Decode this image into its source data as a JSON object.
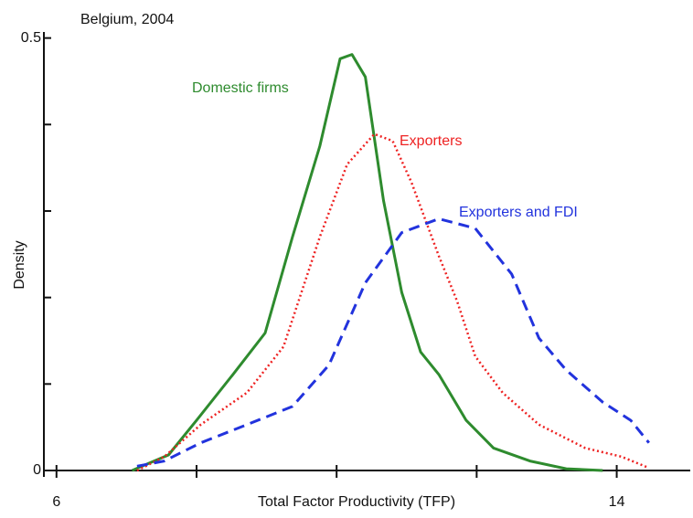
{
  "chart_data": {
    "type": "line",
    "title": "Belgium, 2004",
    "xlabel": "Total Factor Productivity (TFP)",
    "ylabel": "Density",
    "xlim": [
      5.82,
      15.05
    ],
    "ylim": [
      0,
      0.507
    ],
    "xticks": [
      6,
      14
    ],
    "xminor_ticks": [
      8,
      10,
      12
    ],
    "yticks": [
      0,
      0.5
    ],
    "yminor_ticks": [
      0.1,
      0.2,
      0.3,
      0.4
    ],
    "grid": false,
    "series": [
      {
        "name": "Domestic firms",
        "color": "#2e8b2e",
        "dash": "solid",
        "x": [
          7.08,
          7.28,
          7.6,
          8.0,
          8.52,
          8.98,
          9.37,
          9.76,
          10.05,
          10.22,
          10.41,
          10.67,
          10.93,
          11.2,
          11.46,
          11.85,
          12.24,
          12.76,
          13.28,
          13.8
        ],
        "values": [
          0,
          0.007,
          0.018,
          0.058,
          0.111,
          0.159,
          0.27,
          0.375,
          0.476,
          0.481,
          0.455,
          0.312,
          0.206,
          0.137,
          0.111,
          0.058,
          0.026,
          0.011,
          0.002,
          0
        ]
      },
      {
        "name": "Exporters",
        "color": "#ee2222",
        "dash": "dotted",
        "x": [
          7.15,
          7.54,
          8.06,
          8.72,
          9.24,
          9.76,
          10.15,
          10.54,
          10.8,
          11.07,
          11.46,
          11.72,
          11.98,
          12.37,
          12.89,
          13.55,
          14.07,
          14.46
        ],
        "values": [
          0,
          0.016,
          0.053,
          0.09,
          0.143,
          0.27,
          0.354,
          0.389,
          0.381,
          0.333,
          0.248,
          0.196,
          0.132,
          0.09,
          0.053,
          0.026,
          0.016,
          0.003
        ]
      },
      {
        "name": "Exporters and FDI",
        "color": "#2233dd",
        "dash": "dashed",
        "x": [
          7.15,
          7.54,
          8.06,
          8.72,
          9.37,
          9.89,
          10.41,
          10.93,
          11.46,
          11.98,
          12.5,
          12.89,
          13.28,
          13.8,
          14.2,
          14.46
        ],
        "values": [
          0.005,
          0.011,
          0.032,
          0.053,
          0.074,
          0.122,
          0.217,
          0.275,
          0.291,
          0.28,
          0.227,
          0.153,
          0.116,
          0.079,
          0.058,
          0.032
        ]
      }
    ]
  }
}
